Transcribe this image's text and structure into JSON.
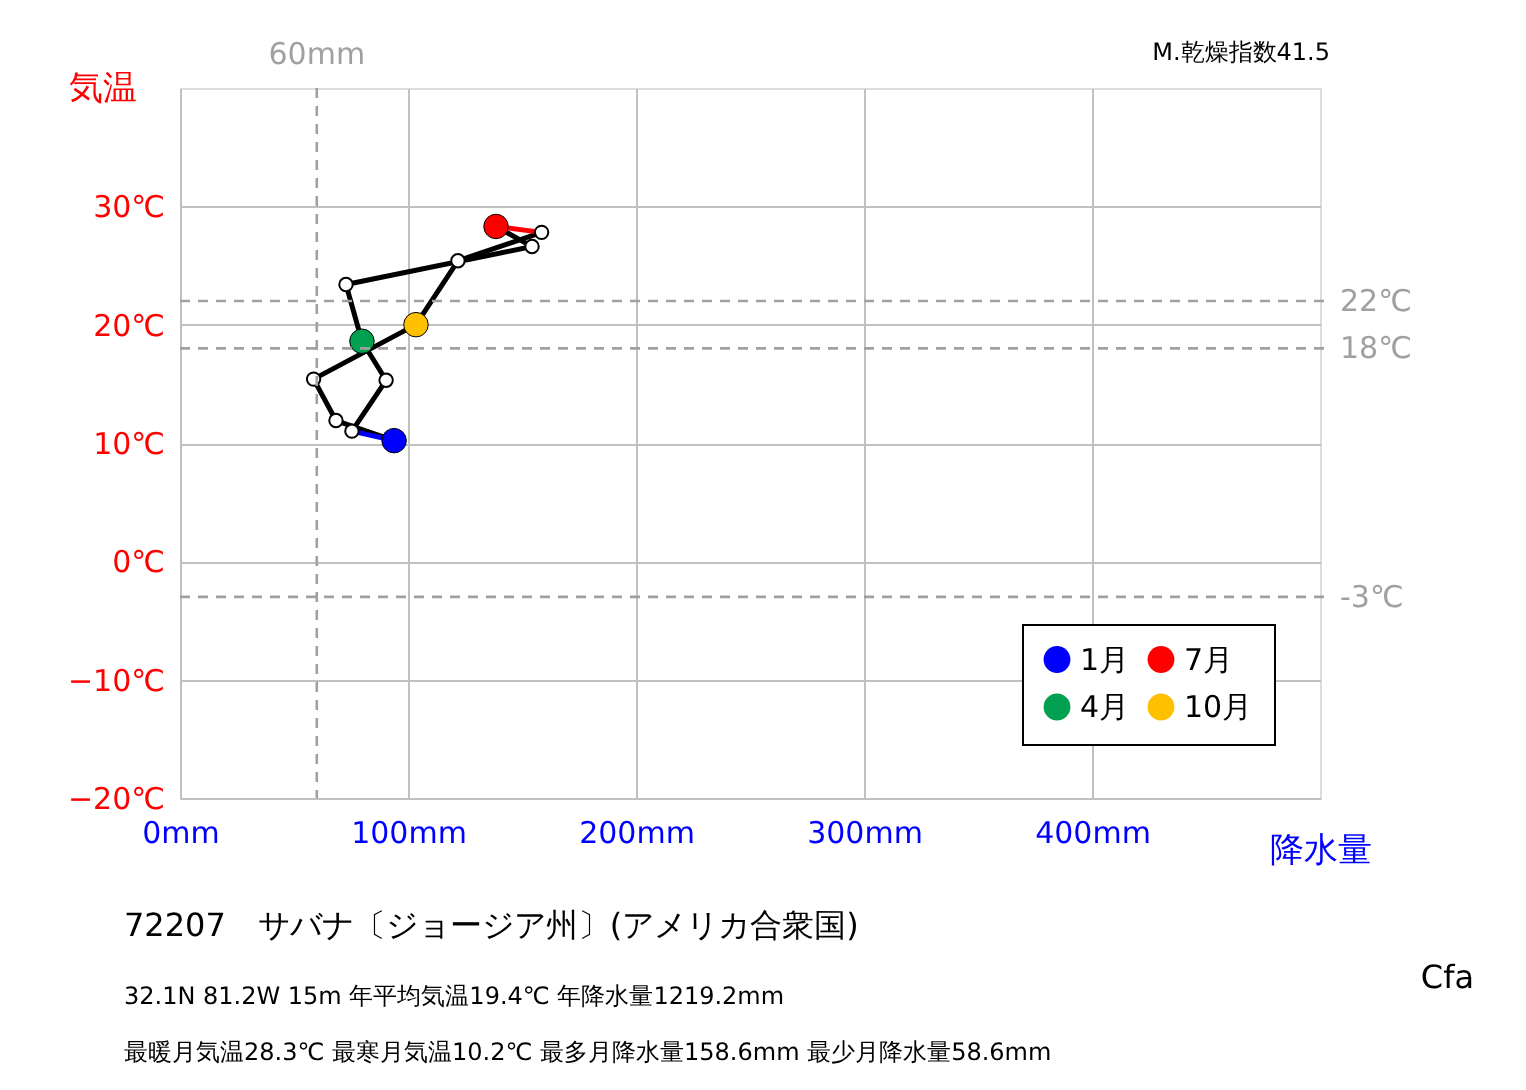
{
  "chart_data": {
    "type": "line",
    "ylabel": "気温",
    "xlabel": "降水量",
    "xlim": [
      0,
      500
    ],
    "xticks": [
      {
        "value": 0,
        "label": "0mm"
      },
      {
        "value": 100,
        "label": "100mm"
      },
      {
        "value": 200,
        "label": "200mm"
      },
      {
        "value": 300,
        "label": "300mm"
      },
      {
        "value": 400,
        "label": "400mm"
      }
    ],
    "ylim": [
      -20,
      40
    ],
    "yticks": [
      {
        "value": -20,
        "label": "−20℃"
      },
      {
        "value": -10,
        "label": "−10℃"
      },
      {
        "value": 0,
        "label": "0℃"
      },
      {
        "value": 10,
        "label": "10℃"
      },
      {
        "value": 20,
        "label": "20℃"
      },
      {
        "value": 30,
        "label": "30℃"
      }
    ],
    "grid": true,
    "legend": "bottom right",
    "series": [
      {
        "color": "#000000",
        "x": [
          75.4,
          90.4
        ],
        "values": [
          11.0,
          15.3
        ]
      },
      {
        "color": "#000000",
        "x": [
          90.4,
          79.8
        ],
        "values": [
          15.3,
          18.6
        ]
      },
      {
        "color": "#000000",
        "x": [
          79.8,
          72.8
        ],
        "values": [
          18.6,
          23.4
        ]
      },
      {
        "color": "#000000",
        "x": [
          72.8,
          154.4
        ],
        "values": [
          23.4,
          26.6
        ]
      },
      {
        "color": "#000000",
        "x": [
          154.4,
          138.6
        ],
        "values": [
          26.6,
          28.3
        ]
      },
      {
        "color": "#000000",
        "x": [
          158.6,
          121.9
        ],
        "values": [
          27.8,
          25.4
        ]
      },
      {
        "color": "#000000",
        "x": [
          121.9,
          103.5
        ],
        "values": [
          25.4,
          20.0
        ]
      },
      {
        "color": "#000000",
        "x": [
          103.5,
          58.6
        ],
        "values": [
          20.0,
          15.4
        ]
      },
      {
        "color": "#000000",
        "x": [
          58.6,
          68.4
        ],
        "values": [
          15.4,
          11.9
        ]
      },
      {
        "color": "#000000",
        "x": [
          68.4,
          93.9
        ],
        "values": [
          11.9,
          10.2
        ]
      },
      {
        "color": "#0000ff",
        "x": [
          93.9,
          75.4
        ],
        "values": [
          10.2,
          11.0
        ]
      },
      {
        "color": "#ff0000",
        "x": [
          138.6,
          158.6
        ],
        "values": [
          28.3,
          27.8
        ]
      },
      {
        "type": "scatter",
        "color": "#ffffff",
        "x": [
          75.4,
          90.4,
          72.8,
          154.4,
          158.6,
          121.9,
          58.6,
          68.4
        ],
        "values": [
          11.0,
          15.3,
          23.4,
          26.6,
          27.8,
          25.4,
          15.4,
          11.9
        ]
      },
      {
        "type": "scatter",
        "name": "1月",
        "color": "#0000ff",
        "x": [
          93.9
        ],
        "values": [
          10.2
        ]
      },
      {
        "type": "scatter",
        "name": "4月",
        "color": "#00a050",
        "x": [
          79.8
        ],
        "values": [
          18.6
        ]
      },
      {
        "type": "scatter",
        "name": "7月",
        "color": "#ff0000",
        "x": [
          138.6
        ],
        "values": [
          28.3
        ]
      },
      {
        "type": "scatter",
        "name": "10月",
        "color": "#ffc000",
        "x": [
          103.5
        ],
        "values": [
          20.0
        ]
      }
    ],
    "ref_lines": [
      {
        "axis": "x",
        "value": 60,
        "label": "60mm",
        "color": "#a0a0a0",
        "line_style": "dashed"
      },
      {
        "axis": "y",
        "value": 22,
        "label": "22℃",
        "color": "#a0a0a0",
        "line_style": "dashed"
      },
      {
        "axis": "y",
        "value": 18,
        "label": "18℃",
        "color": "#a0a0a0",
        "line_style": "dashed"
      },
      {
        "axis": "y",
        "value": -3,
        "label": "-3℃",
        "color": "#a0a0a0",
        "line_style": "dashed"
      }
    ],
    "annotations": [
      "M.乾燥指数41.5",
      "72207　サバナ〔ジョージア州〕(アメリカ合衆国)",
      "32.1N  81.2W 15m  年平均気温19.4℃ 年降水量1219.2mm",
      "最暖月気温28.3℃ 最寒月気温10.2℃ 最多月降水量158.6mm 最少月降水量58.6mm",
      "Cfa"
    ]
  }
}
